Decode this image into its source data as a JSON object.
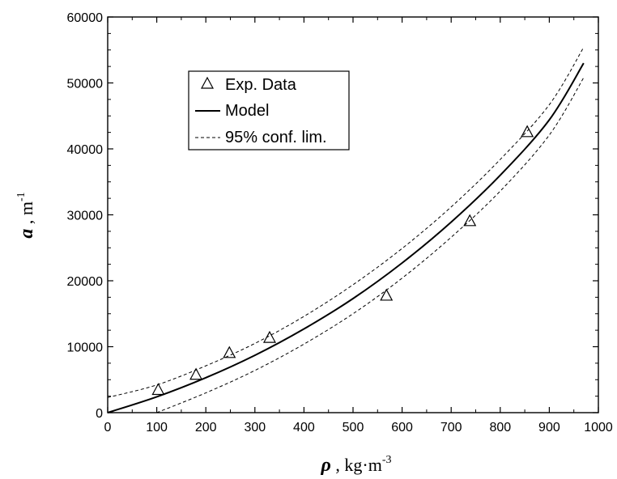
{
  "chart_data": {
    "type": "scatter",
    "xlim": [
      0,
      1000
    ],
    "ylim": [
      0,
      60000
    ],
    "x_ticks": [
      0,
      100,
      200,
      300,
      400,
      500,
      600,
      700,
      800,
      900,
      1000
    ],
    "y_ticks": [
      0,
      10000,
      20000,
      30000,
      40000,
      50000,
      60000
    ],
    "x_tick_labels": [
      "0",
      "100",
      "200",
      "300",
      "400",
      "500",
      "600",
      "700",
      "800",
      "900",
      "1000"
    ],
    "y_tick_labels": [
      "0",
      "10000",
      "20000",
      "30000",
      "40000",
      "50000",
      "60000"
    ],
    "xlabel": {
      "symbol": "ρ",
      "sep": " , ",
      "unit": "kg·m",
      "exp": "-3"
    },
    "ylabel": {
      "symbol": "a",
      "sep": " , ",
      "unit": "m",
      "exp": "-1"
    },
    "grid": false,
    "legend_position": "upper-left (inside)",
    "legend": [
      "Exp. Data",
      "Model",
      "95% conf. lim."
    ],
    "series": [
      {
        "name": "Exp. Data",
        "marker": "open-triangle",
        "points": [
          {
            "x": 103,
            "y": 3500
          },
          {
            "x": 180,
            "y": 5800
          },
          {
            "x": 248,
            "y": 9100
          },
          {
            "x": 330,
            "y": 11400
          },
          {
            "x": 568,
            "y": 17800
          },
          {
            "x": 738,
            "y": 29100
          },
          {
            "x": 855,
            "y": 42600
          }
        ]
      },
      {
        "name": "Model",
        "style": "solid",
        "points": [
          {
            "x": 0,
            "y": 0
          },
          {
            "x": 100,
            "y": 2400
          },
          {
            "x": 200,
            "y": 5300
          },
          {
            "x": 300,
            "y": 8700
          },
          {
            "x": 400,
            "y": 12700
          },
          {
            "x": 500,
            "y": 17300
          },
          {
            "x": 600,
            "y": 22700
          },
          {
            "x": 700,
            "y": 28900
          },
          {
            "x": 800,
            "y": 36000
          },
          {
            "x": 900,
            "y": 44400
          },
          {
            "x": 970,
            "y": 53000
          }
        ]
      },
      {
        "name": "95% conf. lim. (upper)",
        "style": "dashed",
        "points": [
          {
            "x": 0,
            "y": 2300
          },
          {
            "x": 100,
            "y": 4200
          },
          {
            "x": 200,
            "y": 7100
          },
          {
            "x": 300,
            "y": 10500
          },
          {
            "x": 400,
            "y": 14600
          },
          {
            "x": 500,
            "y": 19400
          },
          {
            "x": 600,
            "y": 24900
          },
          {
            "x": 700,
            "y": 31200
          },
          {
            "x": 800,
            "y": 38400
          },
          {
            "x": 900,
            "y": 46700
          },
          {
            "x": 970,
            "y": 55400
          }
        ]
      },
      {
        "name": "95% conf. lim. (lower)",
        "style": "dashed",
        "points": [
          {
            "x": 100,
            "y": 0
          },
          {
            "x": 200,
            "y": 3000
          },
          {
            "x": 300,
            "y": 6400
          },
          {
            "x": 400,
            "y": 10400
          },
          {
            "x": 500,
            "y": 15000
          },
          {
            "x": 600,
            "y": 20400
          },
          {
            "x": 700,
            "y": 26600
          },
          {
            "x": 800,
            "y": 33600
          },
          {
            "x": 900,
            "y": 42100
          },
          {
            "x": 970,
            "y": 50800
          }
        ]
      }
    ]
  }
}
